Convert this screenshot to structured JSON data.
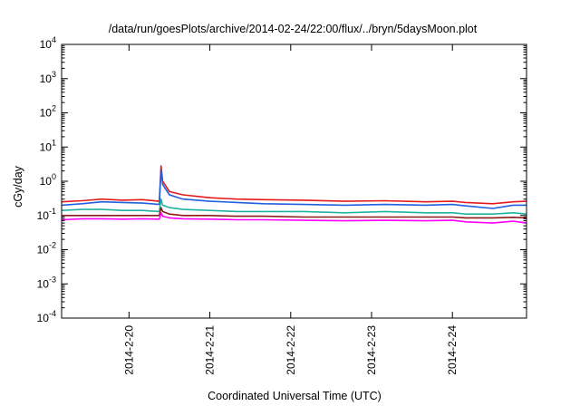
{
  "chart_data": {
    "type": "line",
    "title": "/data/run/goesPlots/archive/2014-02-24/22:00/flux/../bryn/5daysMoon.plot",
    "xlabel": "Coordinated Universal Time (UTC)",
    "ylabel": "cGy/day",
    "yscale": "log",
    "ylim": [
      0.0001,
      10000
    ],
    "xlim": [
      "2014-02-19 04:00",
      "2014-02-24 22:00"
    ],
    "grid": false,
    "legend": "none",
    "x_ticks": [
      {
        "label": "2014-2-20",
        "value": "2014-02-20 00:00"
      },
      {
        "label": "2014-2-21",
        "value": "2014-02-21 00:00"
      },
      {
        "label": "2014-2-22",
        "value": "2014-02-22 00:00"
      },
      {
        "label": "2014-2-23",
        "value": "2014-02-23 00:00"
      },
      {
        "label": "2014-2-24",
        "value": "2014-02-24 00:00"
      }
    ],
    "y_ticks": [
      {
        "base": "10",
        "exp": "-4",
        "value": 0.0001
      },
      {
        "base": "10",
        "exp": "-3",
        "value": 0.001
      },
      {
        "base": "10",
        "exp": "-2",
        "value": 0.01
      },
      {
        "base": "10",
        "exp": "-1",
        "value": 0.1
      },
      {
        "base": "10",
        "exp": "0",
        "value": 1
      },
      {
        "base": "10",
        "exp": "1",
        "value": 10
      },
      {
        "base": "10",
        "exp": "2",
        "value": 100
      },
      {
        "base": "10",
        "exp": "3",
        "value": 1000
      },
      {
        "base": "10",
        "exp": "4",
        "value": 10000
      }
    ],
    "x": [
      "2014-02-19 04:00",
      "2014-02-19 10:00",
      "2014-02-19 16:00",
      "2014-02-19 22:00",
      "2014-02-20 04:00",
      "2014-02-20 09:00",
      "2014-02-20 09:30",
      "2014-02-20 10:00",
      "2014-02-20 12:00",
      "2014-02-20 16:00",
      "2014-02-21 00:00",
      "2014-02-21 08:00",
      "2014-02-21 16:00",
      "2014-02-22 04:00",
      "2014-02-22 16:00",
      "2014-02-23 04:00",
      "2014-02-23 16:00",
      "2014-02-24 00:00",
      "2014-02-24 04:00",
      "2014-02-24 12:00",
      "2014-02-24 18:00",
      "2014-02-24 22:00"
    ],
    "series": [
      {
        "color": "#e41a1c",
        "values": [
          0.25,
          0.27,
          0.3,
          0.28,
          0.29,
          0.26,
          2.8,
          1.0,
          0.5,
          0.4,
          0.33,
          0.3,
          0.29,
          0.28,
          0.26,
          0.27,
          0.25,
          0.26,
          0.24,
          0.22,
          0.25,
          0.26
        ]
      },
      {
        "color": "#1f5fe0",
        "values": [
          0.2,
          0.22,
          0.25,
          0.24,
          0.23,
          0.21,
          2.2,
          0.8,
          0.4,
          0.3,
          0.26,
          0.24,
          0.22,
          0.21,
          0.2,
          0.21,
          0.2,
          0.21,
          0.19,
          0.16,
          0.2,
          0.2
        ]
      },
      {
        "color": "#20b2a0",
        "values": [
          0.14,
          0.15,
          0.15,
          0.14,
          0.14,
          0.13,
          0.3,
          0.2,
          0.17,
          0.15,
          0.14,
          0.13,
          0.13,
          0.13,
          0.12,
          0.13,
          0.12,
          0.12,
          0.11,
          0.11,
          0.12,
          0.11
        ]
      },
      {
        "color": "#8b1a1a",
        "values": [
          0.1,
          0.1,
          0.1,
          0.1,
          0.1,
          0.1,
          0.17,
          0.13,
          0.11,
          0.1,
          0.1,
          0.095,
          0.095,
          0.09,
          0.09,
          0.09,
          0.09,
          0.09,
          0.085,
          0.085,
          0.088,
          0.085
        ]
      },
      {
        "color": "#ff00ff",
        "values": [
          0.075,
          0.08,
          0.08,
          0.078,
          0.08,
          0.078,
          0.12,
          0.095,
          0.085,
          0.08,
          0.078,
          0.075,
          0.075,
          0.072,
          0.07,
          0.072,
          0.07,
          0.072,
          0.065,
          0.06,
          0.068,
          0.06
        ]
      }
    ]
  }
}
